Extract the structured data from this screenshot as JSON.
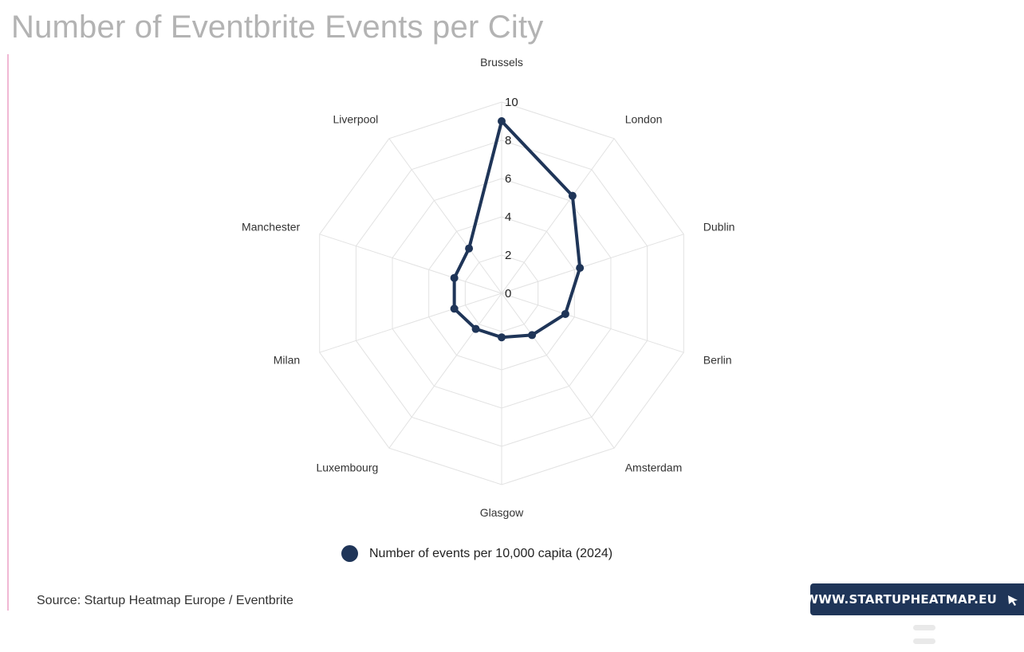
{
  "title": "Number of Eventbrite Events per City",
  "source": "Source: Startup Heatmap Europe / Eventbrite",
  "brand_link": "WWW.STARTUPHEATMAP.EU",
  "colors": {
    "series": "#1f3558",
    "grid": "#e2e2e2",
    "title": "#b3b3b3",
    "accent_rule": "#f0b8d4"
  },
  "icons": {
    "brand_cursor": "cursor-arrow-icon",
    "legend_marker": "circle-icon"
  },
  "chart_data": {
    "type": "radar",
    "title": "Number of Eventbrite Events per City",
    "categories": [
      "Brussels",
      "London",
      "Dublin",
      "Berlin",
      "Amsterdam",
      "Glasgow",
      "Luxembourg",
      "Milan",
      "Manchester",
      "Liverpool"
    ],
    "series": [
      {
        "name": "Number of events per 10,000 capita (2024)",
        "values": [
          9.0,
          6.3,
          4.3,
          3.5,
          2.7,
          2.3,
          2.3,
          2.6,
          2.6,
          2.9
        ]
      }
    ],
    "rlim": [
      0,
      10
    ],
    "ticks": [
      "0",
      "2",
      "4",
      "6",
      "8",
      "10"
    ],
    "grid": true,
    "legend_position": "bottom"
  }
}
